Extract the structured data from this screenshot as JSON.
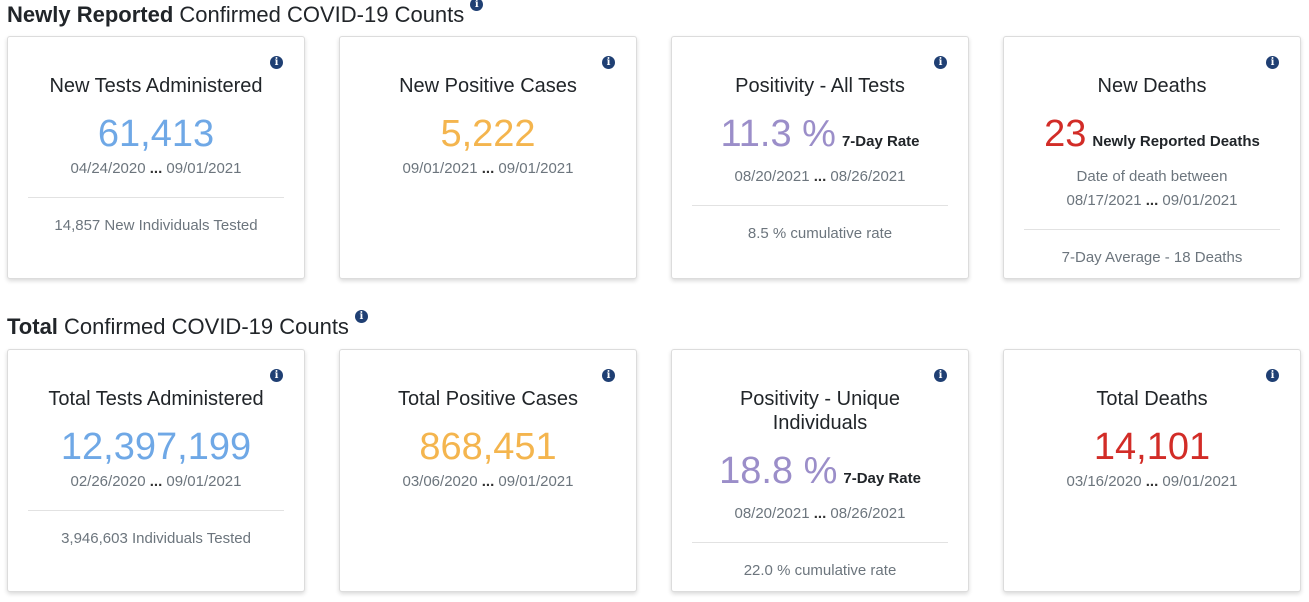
{
  "sections": [
    {
      "title_bold": "Newly Reported",
      "title_rest": "Confirmed COVID-19 Counts",
      "cards": [
        {
          "title": "New Tests Administered",
          "value": "61,413",
          "date_from": "04/24/2020",
          "date_to": "09/01/2021",
          "footer": "14,857 New Individuals Tested"
        },
        {
          "title": "New Positive Cases",
          "value": "5,222",
          "date_from": "09/01/2021",
          "date_to": "09/01/2021"
        },
        {
          "title": "Positivity - All Tests",
          "value": "11.3 %",
          "unit": "7-Day Rate",
          "date_from": "08/20/2021",
          "date_to": "08/26/2021",
          "footer": "8.5 % cumulative rate"
        },
        {
          "title": "New Deaths",
          "value": "23",
          "unit": "Newly Reported Deaths",
          "sub": "Date of death between",
          "date_from": "08/17/2021",
          "date_to": "09/01/2021",
          "footer": "7-Day Average - 18 Deaths"
        }
      ]
    },
    {
      "title_bold": "Total",
      "title_rest": "Confirmed COVID-19 Counts",
      "cards": [
        {
          "title": "Total Tests Administered",
          "value": "12,397,199",
          "date_from": "02/26/2020",
          "date_to": "09/01/2021",
          "footer": "3,946,603 Individuals Tested"
        },
        {
          "title": "Total Positive Cases",
          "value": "868,451",
          "date_from": "03/06/2020",
          "date_to": "09/01/2021"
        },
        {
          "title": "Positivity - Unique Individuals",
          "value": "18.8 %",
          "unit": "7-Day Rate",
          "date_from": "08/20/2021",
          "date_to": "08/26/2021",
          "footer": "22.0 % cumulative rate"
        },
        {
          "title": "Total Deaths",
          "value": "14,101",
          "date_from": "03/16/2020",
          "date_to": "09/01/2021"
        }
      ]
    }
  ],
  "ellipsis": "...",
  "info_glyph": "i",
  "colors": {
    "tests": "#6fa8e6",
    "cases": "#f4b54e",
    "positivity": "#9b8ec9",
    "deaths": "#d22c27",
    "info": "#1f3f73"
  }
}
